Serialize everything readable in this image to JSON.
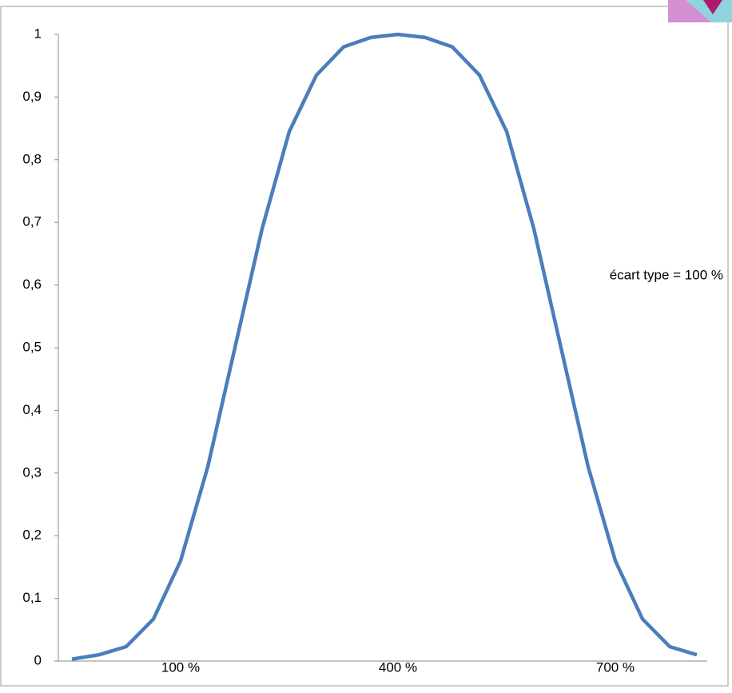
{
  "chart_data": {
    "type": "line",
    "annotation": "écart type = 100 %",
    "categories": [
      null,
      null,
      null,
      null,
      "100 %",
      null,
      null,
      null,
      null,
      null,
      null,
      null,
      "400 %",
      null,
      null,
      null,
      null,
      null,
      null,
      null,
      "700 %",
      null,
      null,
      null
    ],
    "series": [
      {
        "color": "#4a7ebb",
        "values": [
          0.003,
          0.01,
          0.023,
          0.067,
          0.16,
          0.31,
          0.5,
          0.69,
          0.845,
          0.935,
          0.98,
          0.995,
          1,
          0.995,
          0.98,
          0.935,
          0.845,
          0.69,
          0.5,
          0.31,
          0.16,
          0.067,
          0.023,
          0.01
        ]
      }
    ],
    "ylim": [
      0,
      1
    ],
    "yticks": [
      0,
      {
        "value": 0.1,
        "label": "0,1"
      },
      {
        "value": 0.2,
        "label": "0,2"
      },
      {
        "value": 0.3,
        "label": "0,3"
      },
      {
        "value": 0.4,
        "label": "0,4"
      },
      {
        "value": 0.5,
        "label": "0,5"
      },
      {
        "value": 0.6,
        "label": "0,6"
      },
      {
        "value": 0.7,
        "label": "0,7"
      },
      {
        "value": 0.8,
        "label": "0,8"
      },
      {
        "value": 0.9,
        "label": "0,9"
      },
      1
    ],
    "grid": false
  }
}
